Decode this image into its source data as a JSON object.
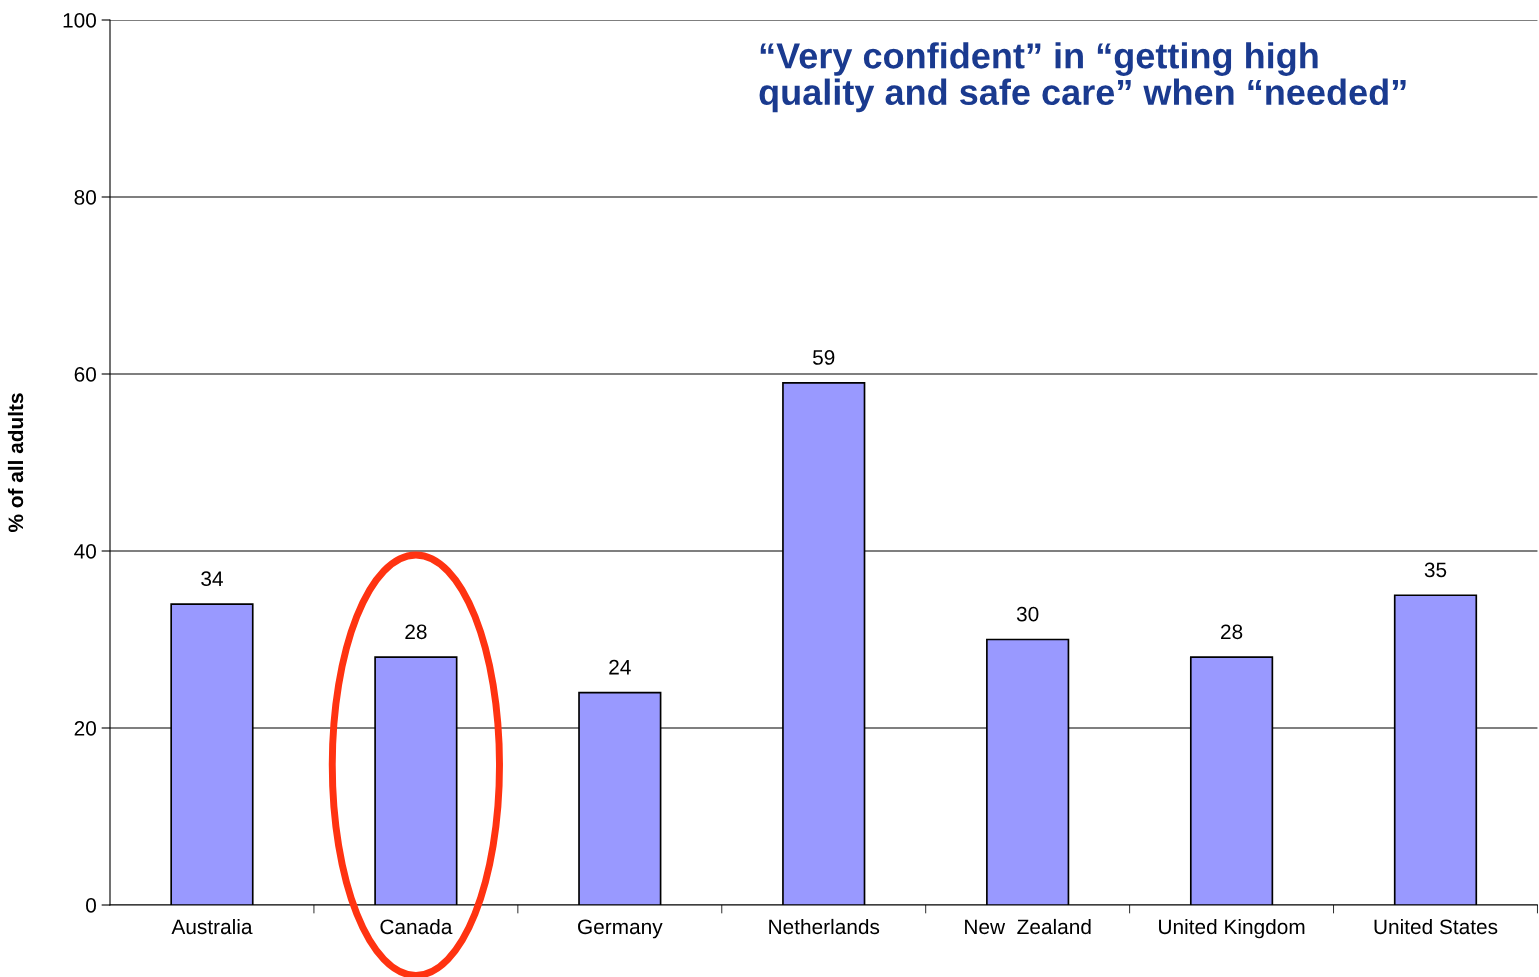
{
  "chart_data": {
    "type": "bar",
    "title": "“Very confident” in “getting high\nquality and safe care” when “needed”",
    "ylabel": "% of all adults",
    "categories": [
      "Australia",
      "Canada",
      "Germany",
      "Netherlands",
      "New  Zealand",
      "United Kingdom",
      "United States"
    ],
    "values": [
      34,
      28,
      24,
      59,
      30,
      28,
      35
    ],
    "color": "#9999ff",
    "data_labels": true,
    "ylim": [
      0,
      100
    ],
    "yticks": [
      0,
      20,
      40,
      60,
      80,
      100
    ],
    "grid": "y",
    "legend": false
  }
}
